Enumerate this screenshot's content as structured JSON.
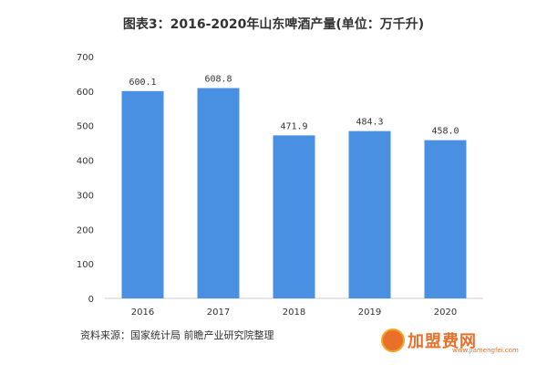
{
  "chart_data": {
    "type": "bar",
    "title": "图表3：2016-2020年山东啤酒产量(单位：万千升)",
    "categories": [
      "2016",
      "2017",
      "2018",
      "2019",
      "2020"
    ],
    "values": [
      600.1,
      608.8,
      471.9,
      484.3,
      458.0
    ],
    "value_labels": [
      "600.1",
      "608.8",
      "471.9",
      "484.3",
      "458.0"
    ],
    "y_ticks": [
      0,
      100,
      200,
      300,
      400,
      500,
      600,
      700
    ],
    "ylim": [
      0,
      700
    ],
    "xlabel": "",
    "ylabel": "",
    "grid": false,
    "bar_color": "#4a90e2"
  },
  "footer": {
    "source": "资料来源：国家统计局 前瞻产业研究院整理"
  },
  "watermark": {
    "logo_text": "加盟费网",
    "logo_sub": "www.jiamengfei.com"
  }
}
